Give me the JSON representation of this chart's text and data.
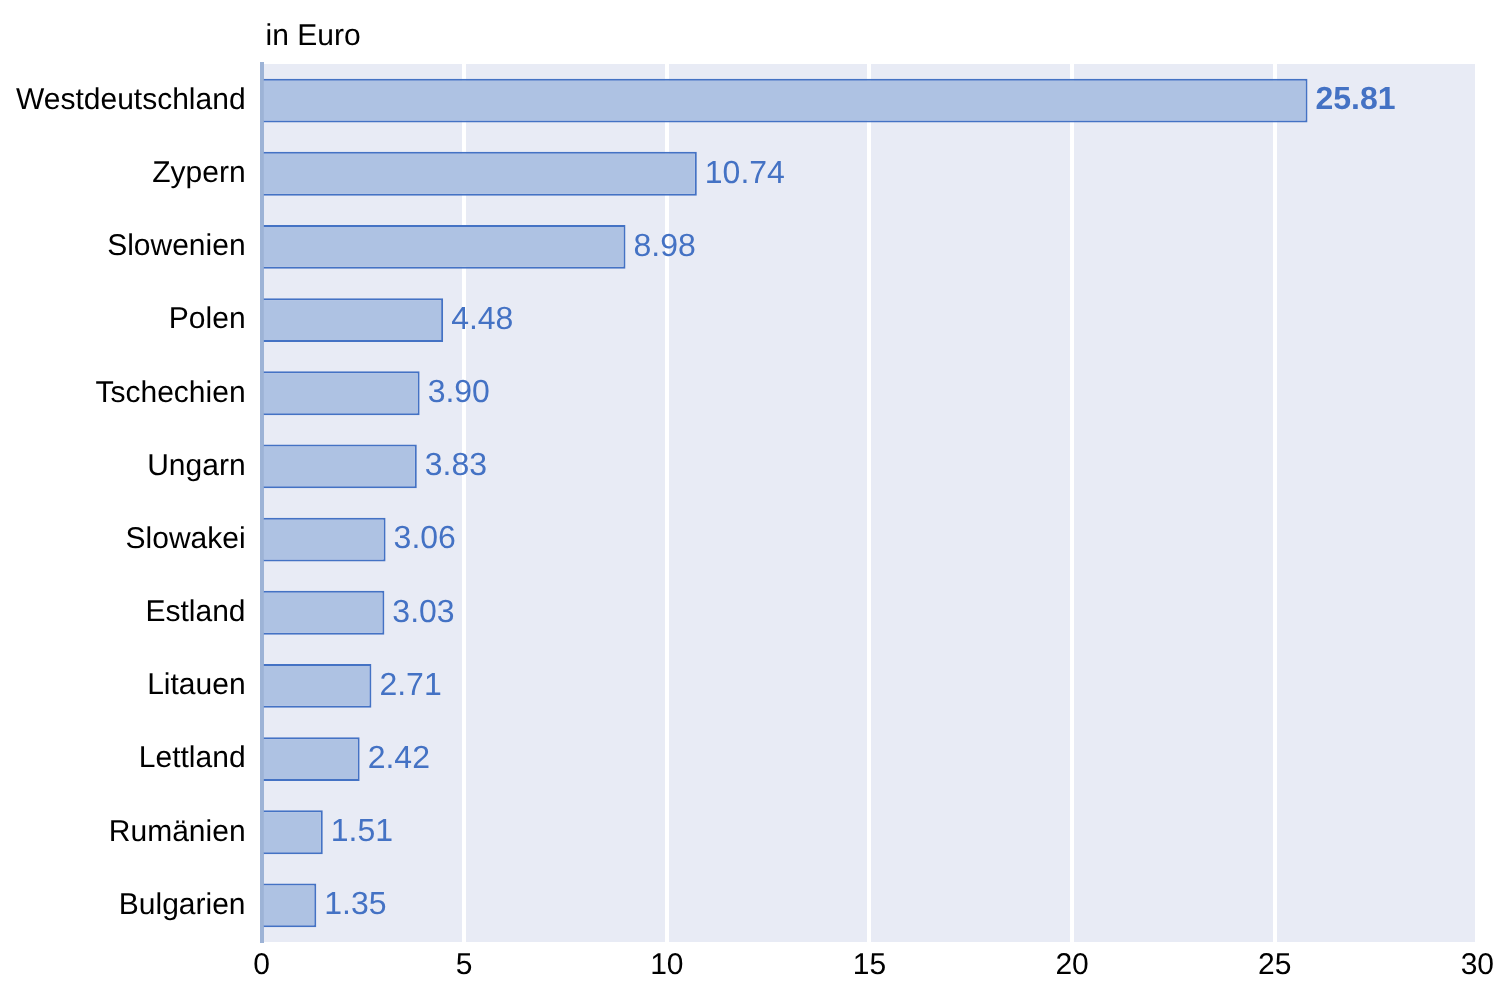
{
  "chart_data": {
    "type": "bar",
    "orientation": "horizontal",
    "title": "in Euro",
    "categories": [
      "Westdeutschland",
      "Zypern",
      "Slowenien",
      "Polen",
      "Tschechien",
      "Ungarn",
      "Slowakei",
      "Estland",
      "Litauen",
      "Lettland",
      "Rumänien",
      "Bulgarien"
    ],
    "values": [
      25.81,
      10.74,
      8.98,
      4.48,
      3.9,
      3.83,
      3.06,
      3.03,
      2.71,
      2.42,
      1.51,
      1.35
    ],
    "value_labels": [
      "25.81",
      "10.74",
      "8.98",
      "4.48",
      "3.90",
      "3.83",
      "3.06",
      "3.03",
      "2.71",
      "2.42",
      "1.51",
      "1.35"
    ],
    "color": "#aec2e3",
    "xlim": [
      0,
      30
    ],
    "xticks": [
      0,
      5,
      10,
      15,
      20,
      25,
      30
    ],
    "grid": "x"
  }
}
